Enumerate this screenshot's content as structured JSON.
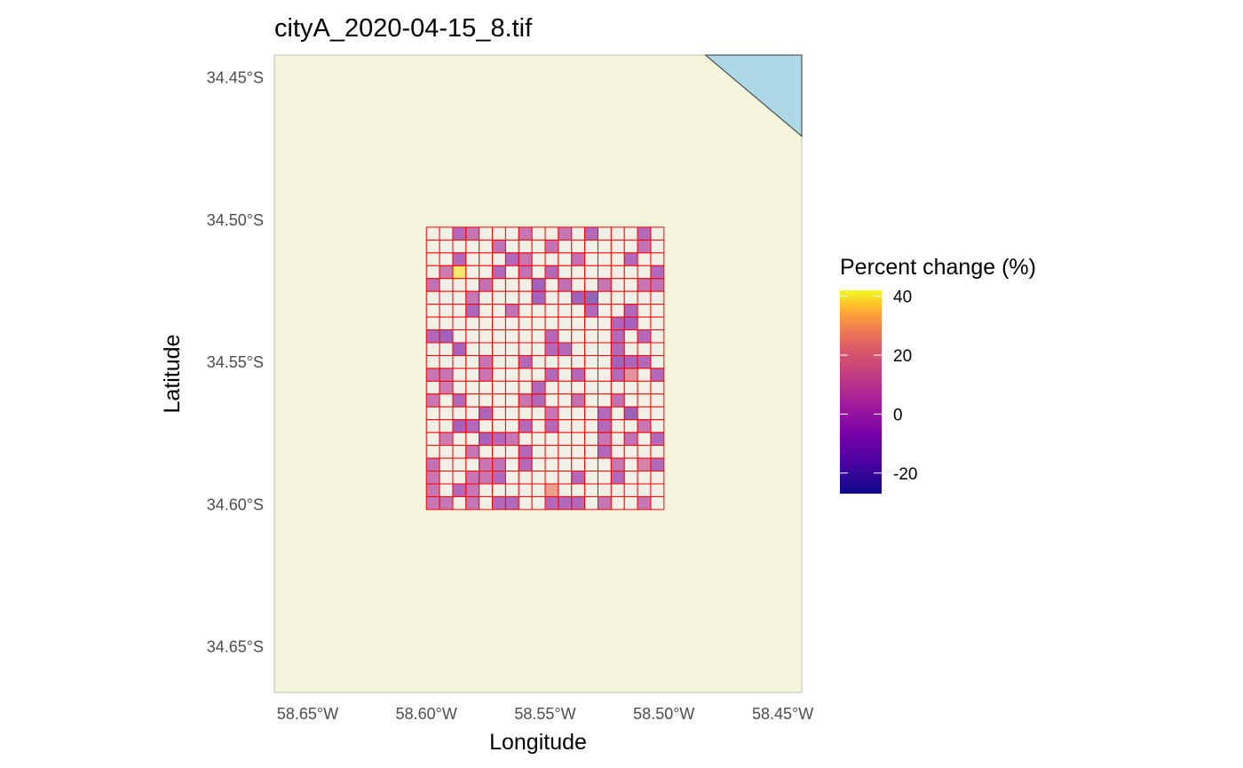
{
  "title": "cityA_2020-04-15_8.tif",
  "xlabel": "Longitude",
  "ylabel": "Latitude",
  "colors": {
    "land": "#F5F5DC",
    "water": "#ADD8E6",
    "grid_stroke": "#FF0000",
    "empty_cell": "#F0F0E6",
    "tick_text": "#4D4D4D"
  },
  "chart_data": {
    "type": "heatmap",
    "title": "cityA_2020-04-15_8.tif",
    "xlabel": "Longitude",
    "ylabel": "Latitude",
    "xlim": [
      -58.664,
      -58.442
    ],
    "ylim": [
      -34.666,
      -34.442
    ],
    "x_ticks": [
      {
        "value": -58.65,
        "label": "58.65°W"
      },
      {
        "value": -58.6,
        "label": "58.60°W"
      },
      {
        "value": -58.55,
        "label": "58.55°W"
      },
      {
        "value": -58.5,
        "label": "58.50°W"
      },
      {
        "value": -58.45,
        "label": "58.45°W"
      }
    ],
    "y_ticks": [
      {
        "value": -34.45,
        "label": "34.45°S"
      },
      {
        "value": -34.5,
        "label": "34.50°S"
      },
      {
        "value": -34.55,
        "label": "34.55°S"
      },
      {
        "value": -34.6,
        "label": "34.60°S"
      },
      {
        "value": -34.65,
        "label": "34.65°S"
      }
    ],
    "water_polygon": [
      [
        -58.4825,
        -34.442
      ],
      [
        -58.442,
        -34.442
      ],
      [
        -58.442,
        -34.4705
      ]
    ],
    "grid": {
      "x_min": -58.6,
      "x_max": -58.5,
      "y_min": -34.6017,
      "y_max": -34.5025,
      "n_cols": 18,
      "n_rows": 22,
      "cells": [
        [
          null,
          null,
          -3,
          5,
          null,
          null,
          null,
          5,
          null,
          null,
          5,
          null,
          -3,
          null,
          null,
          null,
          -3,
          null
        ],
        [
          null,
          null,
          null,
          null,
          null,
          3,
          null,
          null,
          null,
          3,
          null,
          null,
          null,
          null,
          null,
          null,
          3,
          null
        ],
        [
          null,
          null,
          -3,
          null,
          null,
          null,
          -3,
          5,
          null,
          null,
          null,
          3,
          null,
          null,
          null,
          -3,
          null,
          null
        ],
        [
          null,
          8,
          40,
          null,
          null,
          -3,
          null,
          3,
          null,
          -3,
          null,
          null,
          null,
          null,
          null,
          null,
          null,
          -3
        ],
        [
          3,
          null,
          null,
          null,
          3,
          null,
          null,
          null,
          -10,
          null,
          3,
          null,
          null,
          5,
          null,
          null,
          5,
          3
        ],
        [
          null,
          null,
          null,
          5,
          null,
          null,
          null,
          null,
          -8,
          null,
          null,
          -10,
          -15,
          null,
          null,
          null,
          null,
          null
        ],
        [
          null,
          null,
          null,
          -5,
          null,
          null,
          3,
          null,
          null,
          null,
          null,
          null,
          -3,
          null,
          null,
          -3,
          null,
          null
        ],
        [
          null,
          null,
          null,
          null,
          null,
          null,
          null,
          null,
          null,
          null,
          null,
          null,
          null,
          null,
          -5,
          -8,
          null,
          null
        ],
        [
          -5,
          -10,
          null,
          null,
          null,
          null,
          null,
          null,
          null,
          -3,
          null,
          null,
          null,
          null,
          -3,
          null,
          -3,
          null
        ],
        [
          null,
          null,
          -8,
          null,
          null,
          null,
          null,
          null,
          null,
          -3,
          -3,
          null,
          null,
          null,
          -3,
          null,
          null,
          null
        ],
        [
          null,
          null,
          null,
          null,
          5,
          null,
          null,
          -3,
          null,
          null,
          null,
          null,
          null,
          null,
          -10,
          -5,
          -3,
          null
        ],
        [
          5,
          5,
          null,
          null,
          5,
          null,
          null,
          null,
          null,
          -3,
          null,
          -3,
          null,
          null,
          -3,
          20,
          null,
          -3
        ],
        [
          null,
          8,
          null,
          null,
          null,
          null,
          null,
          null,
          -3,
          null,
          null,
          null,
          null,
          null,
          null,
          null,
          null,
          null
        ],
        [
          5,
          null,
          -3,
          null,
          null,
          null,
          null,
          5,
          -3,
          null,
          null,
          3,
          null,
          null,
          3,
          null,
          null,
          null
        ],
        [
          null,
          null,
          null,
          null,
          -5,
          null,
          null,
          null,
          null,
          5,
          null,
          null,
          null,
          -3,
          null,
          -12,
          null,
          null
        ],
        [
          null,
          null,
          -8,
          -3,
          null,
          null,
          null,
          -3,
          null,
          -3,
          null,
          null,
          null,
          -3,
          null,
          null,
          5,
          null
        ],
        [
          null,
          8,
          null,
          null,
          -8,
          -3,
          5,
          null,
          null,
          null,
          null,
          null,
          null,
          5,
          null,
          3,
          null,
          -3
        ],
        [
          null,
          null,
          null,
          5,
          null,
          null,
          null,
          -3,
          null,
          null,
          null,
          null,
          null,
          -3,
          null,
          null,
          null,
          null
        ],
        [
          3,
          null,
          null,
          null,
          5,
          3,
          null,
          -3,
          null,
          null,
          null,
          null,
          null,
          null,
          5,
          null,
          12,
          -3
        ],
        [
          5,
          null,
          null,
          5,
          5,
          -3,
          null,
          null,
          null,
          null,
          null,
          -3,
          null,
          null,
          -3,
          null,
          null,
          null
        ],
        [
          5,
          null,
          -3,
          5,
          null,
          null,
          null,
          null,
          null,
          25,
          null,
          null,
          null,
          null,
          null,
          null,
          null,
          null
        ],
        [
          5,
          5,
          null,
          5,
          null,
          -3,
          -3,
          null,
          null,
          -3,
          -3,
          -3,
          null,
          5,
          null,
          null,
          5,
          null
        ]
      ]
    },
    "legend": {
      "title": "Percent change (%)",
      "range": [
        -27,
        42
      ],
      "ticks": [
        {
          "value": 40,
          "label": "40"
        },
        {
          "value": 20,
          "label": "20"
        },
        {
          "value": 0,
          "label": "0"
        },
        {
          "value": -20,
          "label": "-20"
        }
      ],
      "colormap": "plasma",
      "placement": "right"
    }
  }
}
